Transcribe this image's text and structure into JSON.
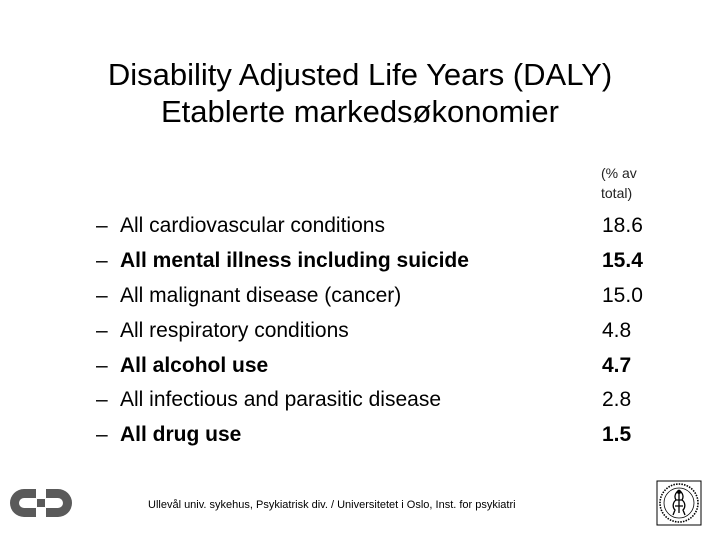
{
  "title": {
    "line1": "Disability Adjusted Life Years (DALY)",
    "line2": "Etablerte markedsøkonomier"
  },
  "unit_note": {
    "line1": "(% av",
    "line2": "total)"
  },
  "dash": "–",
  "items": [
    {
      "label": "All cardiovascular conditions",
      "value": "18.6",
      "bold": false
    },
    {
      "label": "All mental illness including suicide",
      "value": "15.4",
      "bold": true
    },
    {
      "label": "All malignant disease (cancer)",
      "value": "15.0",
      "bold": false
    },
    {
      "label": "All respiratory conditions",
      "value": "4.8",
      "bold": false
    },
    {
      "label": "All alcohol use",
      "value": "4.7",
      "bold": true
    },
    {
      "label": "All infectious and parasitic disease",
      "value": "2.8",
      "bold": false
    },
    {
      "label": "All drug use",
      "value": "1.5",
      "bold": true
    }
  ],
  "footer": "Ullevål univ. sykehus, Psykiatrisk div. / Universitetet i Oslo,  Inst. for psykiatri",
  "icons": {
    "left_logo": "hospital-logo-icon",
    "right_logo": "university-seal-icon"
  },
  "colors": {
    "text": "#000000",
    "logo_gray": "#5a5a5a"
  }
}
